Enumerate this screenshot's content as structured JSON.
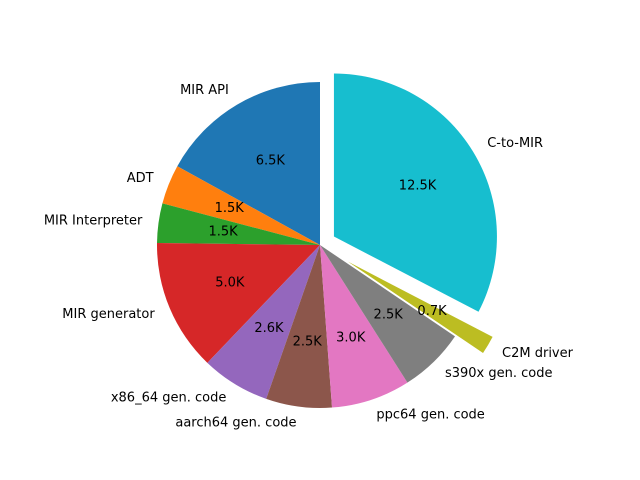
{
  "chart_data": {
    "type": "pie",
    "categories": [
      "MIR API",
      "ADT",
      "MIR Interpreter",
      "MIR generator",
      "x86_64 gen. code",
      "aarch64 gen. code",
      "ppc64 gen. code",
      "s390x gen. code",
      "C2M driver",
      "C-to-MIR"
    ],
    "values": [
      6.5,
      1.5,
      1.5,
      5.0,
      2.6,
      2.5,
      3.0,
      2.5,
      0.7,
      12.5
    ],
    "value_labels": [
      "6.5K",
      "1.5K",
      "1.5K",
      "5.0K",
      "2.6K",
      "2.5K",
      "3.0K",
      "2.5K",
      "0.7K",
      "12.5K"
    ],
    "colors": [
      "#1f77b4",
      "#ff7f0e",
      "#2ca02c",
      "#d62728",
      "#9467bd",
      "#8c564b",
      "#e377c2",
      "#7f7f7f",
      "#bcbd22",
      "#17becf"
    ],
    "explode": [
      0,
      0,
      0,
      0,
      0,
      0,
      0,
      0,
      0.2,
      0.1
    ],
    "start_angle": 90,
    "counterclock": true
  }
}
